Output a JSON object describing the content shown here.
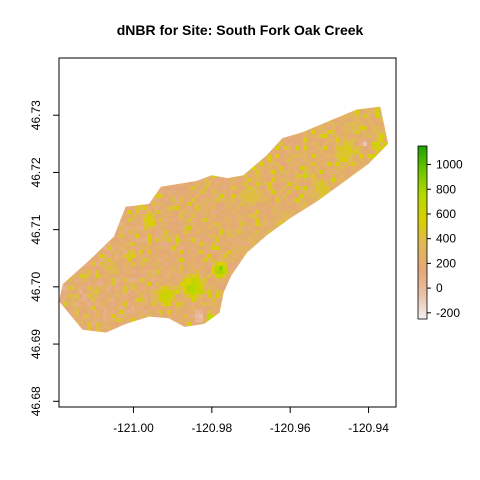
{
  "chart_data": {
    "type": "heatmap",
    "title": "dNBR for Site: South Fork Oak Creek",
    "xlabel": "",
    "ylabel": "",
    "xlim": [
      -121.019,
      -120.933
    ],
    "ylim": [
      46.679,
      46.74
    ],
    "x_ticks": [
      -121.0,
      -120.98,
      -120.96,
      -120.94
    ],
    "x_tick_labels": [
      "-121.00",
      "-120.98",
      "-120.96",
      "-120.94"
    ],
    "y_ticks": [
      46.68,
      46.69,
      46.7,
      46.71,
      46.72,
      46.73
    ],
    "y_tick_labels": [
      "46.68",
      "46.69",
      "46.70",
      "46.71",
      "46.72",
      "46.73"
    ],
    "legend": {
      "placement": "right",
      "min": -250,
      "max": 1150,
      "ticks": [
        -200,
        0,
        200,
        400,
        600,
        800,
        1000
      ],
      "tick_labels": [
        "-200",
        "0",
        "200",
        "400",
        "600",
        "800",
        "1000"
      ],
      "colors": [
        "#f2f2f2",
        "#e9bfa8",
        "#e5a878",
        "#e0b85a",
        "#d8d000",
        "#b7d800",
        "#6fc400",
        "#1ea200"
      ]
    },
    "site_boundary": [
      [
        -121.018,
        46.7005
      ],
      [
        -121.011,
        46.7048
      ],
      [
        -121.005,
        46.7088
      ],
      [
        -121.002,
        46.714
      ],
      [
        -120.996,
        46.7145
      ],
      [
        -120.993,
        46.7175
      ],
      [
        -120.984,
        46.7185
      ],
      [
        -120.98,
        46.7195
      ],
      [
        -120.976,
        46.719
      ],
      [
        -120.972,
        46.7195
      ],
      [
        -120.966,
        46.723
      ],
      [
        -120.962,
        46.726
      ],
      [
        -120.957,
        46.727
      ],
      [
        -120.95,
        46.729
      ],
      [
        -120.943,
        46.731
      ],
      [
        -120.937,
        46.7315
      ],
      [
        -120.935,
        46.725
      ],
      [
        -120.94,
        46.7215
      ],
      [
        -120.946,
        46.7185
      ],
      [
        -120.953,
        46.715
      ],
      [
        -120.96,
        46.712
      ],
      [
        -120.966,
        46.709
      ],
      [
        -120.971,
        46.706
      ],
      [
        -120.975,
        46.702
      ],
      [
        -120.977,
        46.699
      ],
      [
        -120.978,
        46.6955
      ],
      [
        -120.982,
        46.6935
      ],
      [
        -120.987,
        46.693
      ],
      [
        -120.991,
        46.6945
      ],
      [
        -120.996,
        46.6948
      ],
      [
        -121.002,
        46.6935
      ],
      [
        -121.007,
        46.692
      ],
      [
        -121.013,
        46.6925
      ],
      [
        -121.019,
        46.6975
      ]
    ],
    "hotspots": [
      {
        "lon": -120.985,
        "lat": 46.7,
        "r": 0.0035,
        "value": 850
      },
      {
        "lon": -120.978,
        "lat": 46.703,
        "r": 0.0025,
        "value": 900
      },
      {
        "lon": -120.962,
        "lat": 46.7085,
        "r": 0.003,
        "value": 950
      },
      {
        "lon": -120.992,
        "lat": 46.6985,
        "r": 0.003,
        "value": 700
      },
      {
        "lon": -120.981,
        "lat": 46.6945,
        "r": 0.0018,
        "value": 820
      },
      {
        "lon": -120.996,
        "lat": 46.7115,
        "r": 0.002,
        "value": 650
      },
      {
        "lon": -120.946,
        "lat": 46.7235,
        "r": 0.0035,
        "value": 520
      },
      {
        "lon": -120.952,
        "lat": 46.717,
        "r": 0.003,
        "value": 480
      },
      {
        "lon": -121.006,
        "lat": 46.7035,
        "r": 0.0025,
        "value": 420
      },
      {
        "lon": -120.97,
        "lat": 46.716,
        "r": 0.003,
        "value": 450
      },
      {
        "lon": -121.01,
        "lat": 46.699,
        "r": 0.002,
        "value": 380
      }
    ],
    "lowspots": [
      {
        "lon": -120.983,
        "lat": 46.695,
        "r": 0.0025,
        "value": -100
      },
      {
        "lon": -121.013,
        "lat": 46.6995,
        "r": 0.002,
        "value": 30
      },
      {
        "lon": -120.941,
        "lat": 46.725,
        "r": 0.0015,
        "value": -200
      },
      {
        "lon": -121.0,
        "lat": 46.696,
        "r": 0.002,
        "value": 60
      }
    ]
  }
}
